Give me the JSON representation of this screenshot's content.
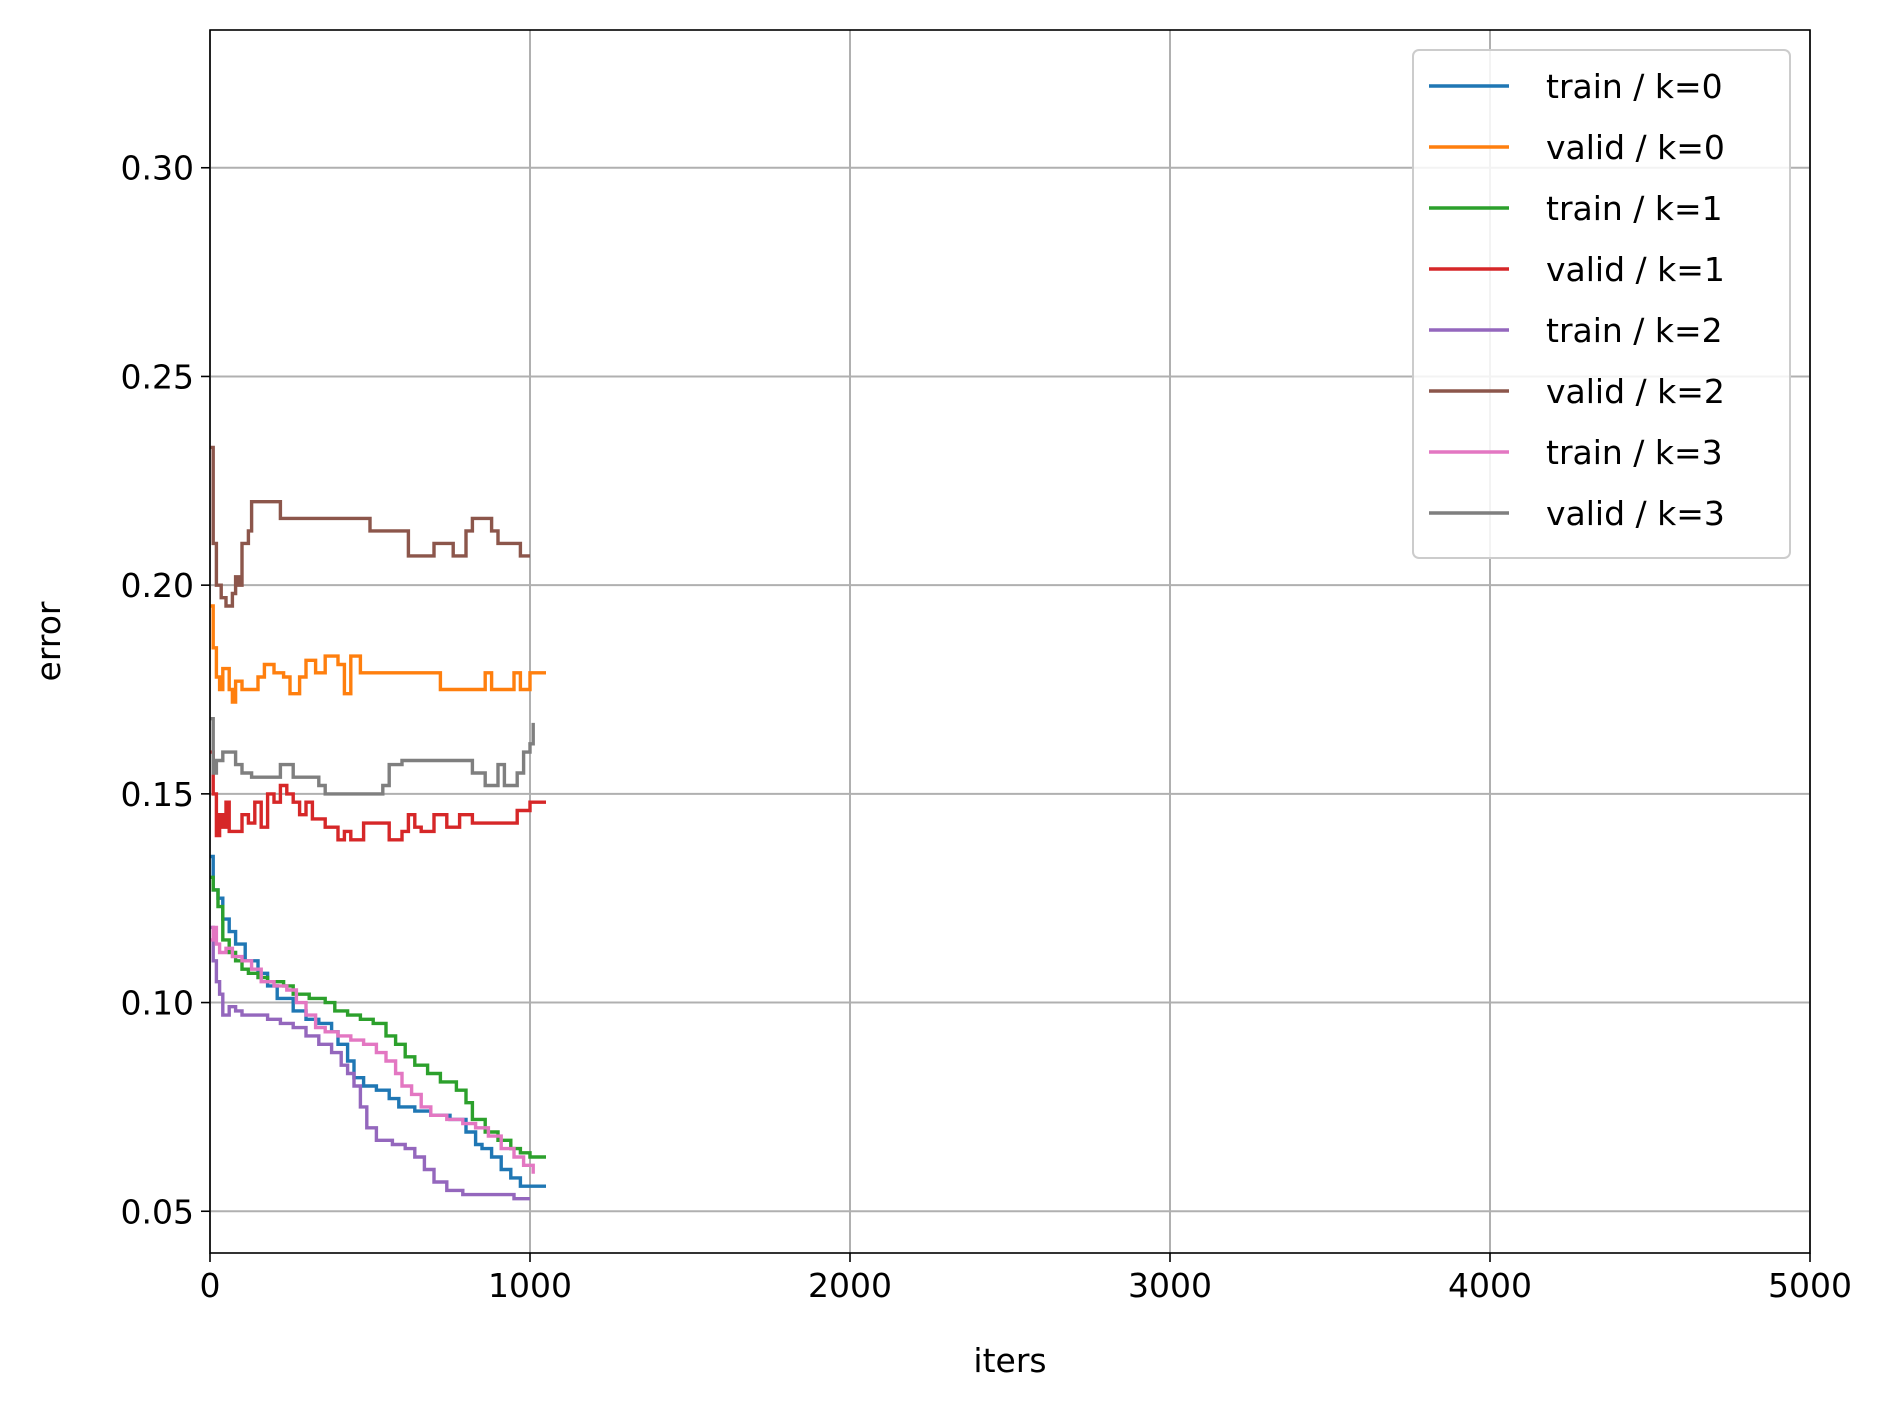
{
  "chart_data": {
    "type": "line",
    "xlabel": "iters",
    "ylabel": "error",
    "xlim": [
      0,
      5000
    ],
    "ylim": [
      0.04,
      0.333
    ],
    "xticks": [
      0,
      1000,
      2000,
      3000,
      4000,
      5000
    ],
    "xtick_labels": [
      "0",
      "1000",
      "2000",
      "3000",
      "4000",
      "5000"
    ],
    "yticks": [
      0.05,
      0.1,
      0.15,
      0.2,
      0.25,
      0.3
    ],
    "ytick_labels": [
      "0.05",
      "0.10",
      "0.15",
      "0.20",
      "0.25",
      "0.30"
    ],
    "grid": true,
    "legend_position": "top-right",
    "series": [
      {
        "name": "train / k=0",
        "color": "#1f77b4",
        "points": [
          [
            0,
            0.135
          ],
          [
            10,
            0.127
          ],
          [
            25,
            0.125
          ],
          [
            40,
            0.12
          ],
          [
            60,
            0.117
          ],
          [
            80,
            0.114
          ],
          [
            110,
            0.11
          ],
          [
            150,
            0.107
          ],
          [
            180,
            0.104
          ],
          [
            210,
            0.101
          ],
          [
            260,
            0.098
          ],
          [
            300,
            0.096
          ],
          [
            340,
            0.095
          ],
          [
            380,
            0.093
          ],
          [
            400,
            0.09
          ],
          [
            430,
            0.086
          ],
          [
            450,
            0.082
          ],
          [
            480,
            0.08
          ],
          [
            520,
            0.079
          ],
          [
            560,
            0.077
          ],
          [
            590,
            0.075
          ],
          [
            640,
            0.074
          ],
          [
            690,
            0.073
          ],
          [
            750,
            0.072
          ],
          [
            800,
            0.069
          ],
          [
            830,
            0.066
          ],
          [
            850,
            0.065
          ],
          [
            880,
            0.063
          ],
          [
            910,
            0.06
          ],
          [
            940,
            0.058
          ],
          [
            970,
            0.056
          ],
          [
            1000,
            0.056
          ],
          [
            1050,
            0.056
          ]
        ]
      },
      {
        "name": "valid / k=0",
        "color": "#ff7f0e",
        "points": [
          [
            0,
            0.195
          ],
          [
            10,
            0.185
          ],
          [
            20,
            0.178
          ],
          [
            30,
            0.175
          ],
          [
            40,
            0.18
          ],
          [
            60,
            0.175
          ],
          [
            70,
            0.172
          ],
          [
            80,
            0.177
          ],
          [
            100,
            0.175
          ],
          [
            120,
            0.175
          ],
          [
            150,
            0.178
          ],
          [
            170,
            0.181
          ],
          [
            200,
            0.179
          ],
          [
            230,
            0.178
          ],
          [
            250,
            0.174
          ],
          [
            280,
            0.178
          ],
          [
            300,
            0.182
          ],
          [
            330,
            0.179
          ],
          [
            360,
            0.183
          ],
          [
            400,
            0.181
          ],
          [
            420,
            0.174
          ],
          [
            440,
            0.183
          ],
          [
            470,
            0.179
          ],
          [
            520,
            0.179
          ],
          [
            600,
            0.179
          ],
          [
            700,
            0.179
          ],
          [
            720,
            0.175
          ],
          [
            800,
            0.175
          ],
          [
            840,
            0.175
          ],
          [
            860,
            0.179
          ],
          [
            880,
            0.175
          ],
          [
            920,
            0.175
          ],
          [
            950,
            0.179
          ],
          [
            970,
            0.175
          ],
          [
            1000,
            0.179
          ],
          [
            1050,
            0.179
          ]
        ]
      },
      {
        "name": "train / k=1",
        "color": "#2ca02c",
        "points": [
          [
            0,
            0.13
          ],
          [
            10,
            0.127
          ],
          [
            25,
            0.123
          ],
          [
            40,
            0.115
          ],
          [
            60,
            0.112
          ],
          [
            80,
            0.11
          ],
          [
            100,
            0.108
          ],
          [
            120,
            0.107
          ],
          [
            150,
            0.106
          ],
          [
            180,
            0.105
          ],
          [
            230,
            0.104
          ],
          [
            260,
            0.102
          ],
          [
            310,
            0.101
          ],
          [
            360,
            0.1
          ],
          [
            390,
            0.098
          ],
          [
            430,
            0.097
          ],
          [
            470,
            0.096
          ],
          [
            510,
            0.095
          ],
          [
            550,
            0.092
          ],
          [
            580,
            0.09
          ],
          [
            610,
            0.087
          ],
          [
            640,
            0.085
          ],
          [
            680,
            0.083
          ],
          [
            720,
            0.081
          ],
          [
            770,
            0.079
          ],
          [
            800,
            0.076
          ],
          [
            820,
            0.072
          ],
          [
            860,
            0.069
          ],
          [
            900,
            0.067
          ],
          [
            940,
            0.065
          ],
          [
            970,
            0.064
          ],
          [
            1000,
            0.063
          ],
          [
            1050,
            0.063
          ]
        ]
      },
      {
        "name": "valid / k=1",
        "color": "#d62728",
        "points": [
          [
            0,
            0.16
          ],
          [
            10,
            0.15
          ],
          [
            20,
            0.14
          ],
          [
            30,
            0.145
          ],
          [
            40,
            0.142
          ],
          [
            50,
            0.148
          ],
          [
            60,
            0.141
          ],
          [
            80,
            0.141
          ],
          [
            100,
            0.145
          ],
          [
            120,
            0.143
          ],
          [
            140,
            0.148
          ],
          [
            160,
            0.142
          ],
          [
            180,
            0.15
          ],
          [
            200,
            0.148
          ],
          [
            220,
            0.152
          ],
          [
            240,
            0.15
          ],
          [
            260,
            0.148
          ],
          [
            280,
            0.145
          ],
          [
            300,
            0.148
          ],
          [
            320,
            0.144
          ],
          [
            360,
            0.142
          ],
          [
            400,
            0.139
          ],
          [
            420,
            0.141
          ],
          [
            440,
            0.139
          ],
          [
            480,
            0.143
          ],
          [
            500,
            0.143
          ],
          [
            540,
            0.143
          ],
          [
            560,
            0.139
          ],
          [
            600,
            0.141
          ],
          [
            620,
            0.145
          ],
          [
            640,
            0.142
          ],
          [
            660,
            0.141
          ],
          [
            700,
            0.145
          ],
          [
            740,
            0.142
          ],
          [
            780,
            0.145
          ],
          [
            820,
            0.143
          ],
          [
            860,
            0.143
          ],
          [
            900,
            0.143
          ],
          [
            960,
            0.146
          ],
          [
            1000,
            0.148
          ],
          [
            1050,
            0.148
          ]
        ]
      },
      {
        "name": "train / k=2",
        "color": "#9467bd",
        "points": [
          [
            0,
            0.118
          ],
          [
            10,
            0.11
          ],
          [
            20,
            0.105
          ],
          [
            30,
            0.102
          ],
          [
            40,
            0.097
          ],
          [
            60,
            0.099
          ],
          [
            80,
            0.098
          ],
          [
            100,
            0.097
          ],
          [
            140,
            0.097
          ],
          [
            180,
            0.096
          ],
          [
            220,
            0.095
          ],
          [
            260,
            0.094
          ],
          [
            300,
            0.092
          ],
          [
            340,
            0.09
          ],
          [
            380,
            0.088
          ],
          [
            410,
            0.085
          ],
          [
            430,
            0.083
          ],
          [
            450,
            0.08
          ],
          [
            470,
            0.075
          ],
          [
            490,
            0.07
          ],
          [
            520,
            0.067
          ],
          [
            570,
            0.066
          ],
          [
            610,
            0.065
          ],
          [
            640,
            0.063
          ],
          [
            670,
            0.06
          ],
          [
            700,
            0.057
          ],
          [
            740,
            0.055
          ],
          [
            790,
            0.054
          ],
          [
            850,
            0.054
          ],
          [
            900,
            0.054
          ],
          [
            950,
            0.053
          ],
          [
            1000,
            0.053
          ]
        ]
      },
      {
        "name": "valid / k=2",
        "color": "#8c564b",
        "points": [
          [
            0,
            0.233
          ],
          [
            10,
            0.21
          ],
          [
            20,
            0.2
          ],
          [
            35,
            0.197
          ],
          [
            50,
            0.195
          ],
          [
            70,
            0.198
          ],
          [
            80,
            0.202
          ],
          [
            90,
            0.2
          ],
          [
            100,
            0.21
          ],
          [
            120,
            0.213
          ],
          [
            130,
            0.22
          ],
          [
            160,
            0.22
          ],
          [
            200,
            0.22
          ],
          [
            220,
            0.216
          ],
          [
            300,
            0.216
          ],
          [
            400,
            0.216
          ],
          [
            480,
            0.216
          ],
          [
            500,
            0.213
          ],
          [
            550,
            0.213
          ],
          [
            600,
            0.213
          ],
          [
            620,
            0.207
          ],
          [
            680,
            0.207
          ],
          [
            700,
            0.21
          ],
          [
            740,
            0.21
          ],
          [
            760,
            0.207
          ],
          [
            800,
            0.213
          ],
          [
            820,
            0.216
          ],
          [
            860,
            0.216
          ],
          [
            880,
            0.213
          ],
          [
            900,
            0.21
          ],
          [
            950,
            0.21
          ],
          [
            970,
            0.207
          ],
          [
            1000,
            0.207
          ]
        ]
      },
      {
        "name": "train / k=3",
        "color": "#e377c2",
        "points": [
          [
            0,
            0.115
          ],
          [
            10,
            0.118
          ],
          [
            20,
            0.114
          ],
          [
            30,
            0.112
          ],
          [
            50,
            0.113
          ],
          [
            70,
            0.111
          ],
          [
            100,
            0.11
          ],
          [
            130,
            0.108
          ],
          [
            160,
            0.105
          ],
          [
            200,
            0.104
          ],
          [
            240,
            0.103
          ],
          [
            270,
            0.1
          ],
          [
            300,
            0.097
          ],
          [
            330,
            0.094
          ],
          [
            360,
            0.093
          ],
          [
            400,
            0.092
          ],
          [
            440,
            0.091
          ],
          [
            480,
            0.09
          ],
          [
            520,
            0.088
          ],
          [
            550,
            0.086
          ],
          [
            580,
            0.083
          ],
          [
            600,
            0.08
          ],
          [
            630,
            0.078
          ],
          [
            660,
            0.075
          ],
          [
            690,
            0.073
          ],
          [
            740,
            0.072
          ],
          [
            790,
            0.071
          ],
          [
            830,
            0.07
          ],
          [
            870,
            0.068
          ],
          [
            910,
            0.065
          ],
          [
            950,
            0.063
          ],
          [
            980,
            0.061
          ],
          [
            1010,
            0.059
          ]
        ]
      },
      {
        "name": "valid / k=3",
        "color": "#7f7f7f",
        "points": [
          [
            0,
            0.168
          ],
          [
            10,
            0.155
          ],
          [
            20,
            0.158
          ],
          [
            40,
            0.16
          ],
          [
            60,
            0.16
          ],
          [
            80,
            0.157
          ],
          [
            100,
            0.155
          ],
          [
            130,
            0.154
          ],
          [
            160,
            0.154
          ],
          [
            200,
            0.154
          ],
          [
            220,
            0.157
          ],
          [
            260,
            0.154
          ],
          [
            300,
            0.154
          ],
          [
            340,
            0.152
          ],
          [
            360,
            0.15
          ],
          [
            420,
            0.15
          ],
          [
            470,
            0.15
          ],
          [
            500,
            0.15
          ],
          [
            540,
            0.152
          ],
          [
            560,
            0.157
          ],
          [
            600,
            0.158
          ],
          [
            700,
            0.158
          ],
          [
            800,
            0.158
          ],
          [
            820,
            0.155
          ],
          [
            860,
            0.152
          ],
          [
            880,
            0.152
          ],
          [
            900,
            0.157
          ],
          [
            920,
            0.152
          ],
          [
            940,
            0.152
          ],
          [
            960,
            0.155
          ],
          [
            980,
            0.16
          ],
          [
            1000,
            0.162
          ],
          [
            1010,
            0.167
          ]
        ]
      }
    ]
  }
}
